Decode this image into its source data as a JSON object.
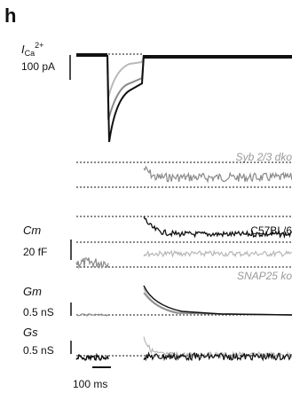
{
  "panel": {
    "letter": "h"
  },
  "labels": {
    "ica_main": "I",
    "ica_sub": "Ca",
    "ica_sup": "2+",
    "ica_scale": "100 pA",
    "syb_label": "Syb 2/3 dko",
    "cm_label": "Cm",
    "c57_label": "C57BL/6",
    "cm_scale": "20 fF",
    "snap_label": "SNAP25 ko",
    "gm_label": "Gm",
    "gm_scale": "0.5 nS",
    "gs_label": "Gs",
    "gs_scale": "0.5 nS",
    "time_scale": "100 ms"
  },
  "colors": {
    "black_trace": "#111111",
    "gray_trace": "#8a8a8a",
    "light_trace": "#b8b8b8",
    "label_gray": "#999999"
  }
}
